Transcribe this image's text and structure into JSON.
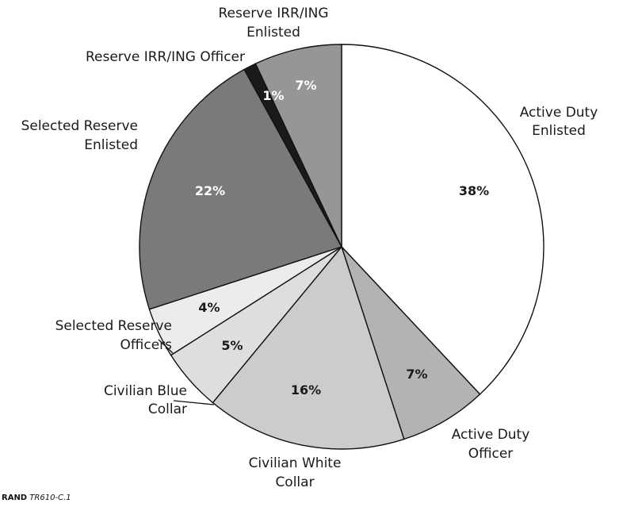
{
  "chart_data": {
    "type": "pie",
    "start_angle_deg": 0,
    "direction": "clockwise",
    "slices": [
      {
        "label": [
          "Active Duty",
          "Enlisted"
        ],
        "value": 38,
        "value_label": "38%",
        "color": "#ffffff",
        "text_color": "#1a1a1a"
      },
      {
        "label": [
          "Active Duty",
          "Officer"
        ],
        "value": 7,
        "value_label": "7%",
        "color": "#b3b3b3",
        "text_color": "#1a1a1a"
      },
      {
        "label": [
          "Civilian White",
          "Collar"
        ],
        "value": 16,
        "value_label": "16%",
        "color": "#cccccc",
        "text_color": "#1a1a1a"
      },
      {
        "label": [
          "Civilian Blue",
          "Collar"
        ],
        "value": 5,
        "value_label": "5%",
        "color": "#dedede",
        "text_color": "#1a1a1a"
      },
      {
        "label": [
          "Selected Reserve",
          "Officers"
        ],
        "value": 4,
        "value_label": "4%",
        "color": "#ececec",
        "text_color": "#1a1a1a"
      },
      {
        "label": [
          "Selected Reserve",
          "Enlisted"
        ],
        "value": 22,
        "value_label": "22%",
        "color": "#7a7a7a",
        "text_color": "#ffffff"
      },
      {
        "label": [
          "Reserve IRR/ING Officer"
        ],
        "value": 1,
        "value_label": "1%",
        "color": "#1a1a1a",
        "text_color": "#ffffff"
      },
      {
        "label": [
          "Reserve IRR/ING",
          "Enlisted"
        ],
        "value": 7,
        "value_label": "7%",
        "color": "#969696",
        "text_color": "#ffffff"
      }
    ]
  },
  "footer": {
    "brand": "RAND",
    "code": "TR610-C.1"
  }
}
